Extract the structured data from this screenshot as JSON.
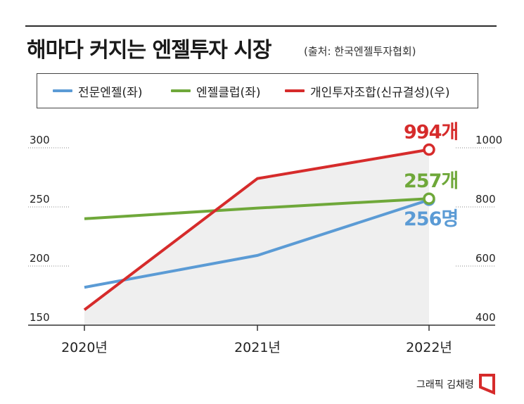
{
  "header": {
    "title": "해마다 커지는 엔젤투자 시장",
    "source": "(출처: 한국엔젤투자협회)"
  },
  "legend": [
    {
      "label": "전문엔젤(좌)",
      "color": "#5b9bd5"
    },
    {
      "label": "엔젤클럽(좌)",
      "color": "#6fa83a"
    },
    {
      "label": "개인투자조합(신규결성)(우)",
      "color": "#d62b2b"
    }
  ],
  "credit": "그래픽 김채령",
  "chart_data": {
    "type": "line",
    "categories": [
      "2020년",
      "2021년",
      "2022년"
    ],
    "left_axis": {
      "ticks": [
        "300",
        "250",
        "200",
        "150"
      ],
      "tick_values": [
        300,
        250,
        200,
        150
      ],
      "ylim": [
        150,
        300
      ]
    },
    "right_axis": {
      "ticks": [
        "1000",
        "800",
        "600",
        "400"
      ],
      "tick_values": [
        1000,
        800,
        600,
        400
      ],
      "ylim": [
        400,
        1000
      ]
    },
    "series": [
      {
        "name": "전문엔젤(좌)",
        "axis": "left",
        "color": "#5b9bd5",
        "values": [
          182,
          209,
          256
        ],
        "end_label": "256명"
      },
      {
        "name": "엔젤클럽(좌)",
        "axis": "left",
        "color": "#6fa83a",
        "values": [
          240,
          249,
          257
        ],
        "end_label": "257개"
      },
      {
        "name": "개인투자조합(신규결성)(우)",
        "axis": "right",
        "color": "#d62b2b",
        "values": [
          452,
          896,
          994
        ],
        "end_label": "994개"
      }
    ],
    "shaded_area_under": "개인투자조합(신규결성)(우)",
    "grid": "dotted horizontal"
  }
}
